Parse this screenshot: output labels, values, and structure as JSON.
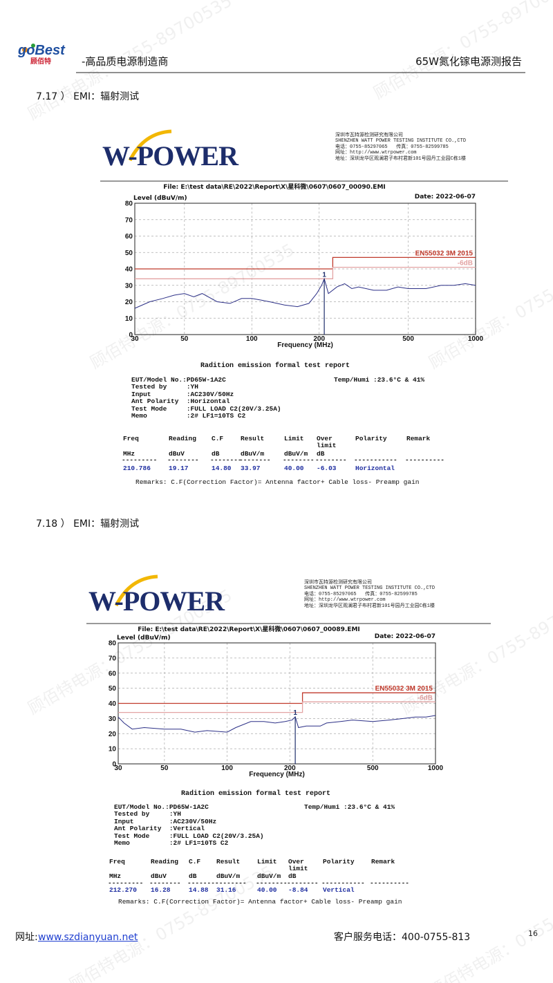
{
  "header": {
    "logo": "goBest",
    "logo_sub": "顾佰特",
    "tagline": "-高品质电源制造商",
    "doc_title": "65W氮化镓电源测报告"
  },
  "watermark": "顾佰特电源：0755-89700535",
  "sections": [
    {
      "heading": "7.17 ） EMI：辐射测试",
      "report": {
        "lab_logo": "W-POWER",
        "lab_lines": [
          "深圳市瓦特源检测研究有限公司",
          "SHENZHEN WATT POWER TESTING INSTITUTE CO.,CTD",
          "电话：0755-85297065   传真：0755-82599785",
          "网址：http://www.wtrpower.com",
          "地址：深圳龙华区观澜君子布村君新101号园丹工业园C栋1楼"
        ],
        "file": "File: E:\\test data\\RE\\2022\\Report\\X\\星科微\\0607\\0607_00090.EMI",
        "date": "Date: 2022-06-07",
        "chart": {
          "type": "line",
          "y_label": "Level (dBuV/m)",
          "x_label": "Frequency (MHz)",
          "log_x": true,
          "grid": true,
          "xlim": [
            30,
            1000
          ],
          "ylim": [
            0,
            80
          ],
          "xticks": [
            30,
            50,
            100,
            200,
            500,
            1000
          ],
          "yticks": [
            0,
            10,
            20,
            30,
            40,
            50,
            60,
            70,
            80
          ],
          "series": [
            {
              "name": "EN55032 3M 2015",
              "color": "#c0392b",
              "x": [
                30,
                230,
                230,
                1000
              ],
              "values": [
                40,
                40,
                47,
                47
              ]
            },
            {
              "name": "-6dB",
              "color": "#e3a3a3",
              "x": [
                30,
                230,
                230,
                1000
              ],
              "values": [
                34,
                34,
                41,
                41
              ]
            },
            {
              "color": "#2b2f86",
              "x": [
                30,
                35,
                40,
                45,
                50,
                55,
                60,
                70,
                80,
                90,
                100,
                110,
                120,
                140,
                160,
                180,
                195,
                205,
                210.786,
                220,
                240,
                260,
                280,
                300,
                350,
                400,
                450,
                500,
                600,
                700,
                800,
                900,
                1000
              ],
              "values": [
                16,
                20,
                22,
                24,
                25,
                23,
                25,
                20,
                19,
                22,
                22,
                21,
                20,
                18,
                17,
                19,
                25,
                30,
                33.97,
                25,
                29,
                31,
                28,
                29,
                27,
                27,
                29,
                28,
                28,
                30,
                30,
                31,
                30
              ]
            }
          ],
          "marker": {
            "label": "1",
            "x": 210.786,
            "y": 33.97
          }
        },
        "title": "Radition emission formal test report",
        "info": [
          "EUT/Model No.:PD65W-1A2C",
          "Tested by     :YH",
          "Input         :AC230V/50Hz",
          "Ant Polarity  :Horizontal",
          "Test Mode     :FULL LOAD C2(20V/3.25A)",
          "Memo          :2# LF1=10TS C2"
        ],
        "temp": "Temp/Humi :23.6°C & 41%",
        "table": {
          "headers": [
            "Freq",
            "Reading",
            "C.F",
            "Result",
            "Limit",
            "Over\nlimit",
            "Polarity",
            "Remark"
          ],
          "units": [
            "MHz",
            "dBuV",
            "dB",
            "dBuV/m",
            "dBuV/m",
            "dB",
            "",
            ""
          ],
          "dashes": [
            "---------",
            "--------",
            "--------",
            "--------",
            "--------",
            "--------",
            "-----------",
            "----------"
          ],
          "rows": [
            [
              "210.786",
              "19.17",
              "14.80",
              "33.97",
              "40.00",
              "-6.03",
              "Horizontal",
              ""
            ]
          ]
        },
        "remarks": "Remarks: C.F(Correction Factor)= Antenna factor+ Cable loss- Preamp gain"
      }
    },
    {
      "heading": "7.18 ） EMI：辐射测试",
      "report": {
        "lab_logo": "W-POWER",
        "lab_lines": [
          "深圳市瓦特源检测研究有限公司",
          "SHENZHEN WATT POWER TESTING INSTITUTE CO.,CTD",
          "电话：0755-85297065   传真：0755-82599785",
          "网址：http://www.wtrpower.com",
          "地址：深圳龙华区观澜君子布村君新101号园丹工业园C栋1楼"
        ],
        "file": "File: E:\\test data\\RE\\2022\\Report\\X\\星科微\\0607\\0607_00089.EMI",
        "date": "Date: 2022-06-07",
        "chart": {
          "type": "line",
          "y_label": "Level (dBuV/m)",
          "x_label": "Frequency (MHz)",
          "log_x": true,
          "grid": true,
          "xlim": [
            30,
            1000
          ],
          "ylim": [
            0,
            80
          ],
          "xticks": [
            30,
            50,
            100,
            200,
            500,
            1000
          ],
          "yticks": [
            0,
            10,
            20,
            30,
            40,
            50,
            60,
            70,
            80
          ],
          "series": [
            {
              "name": "EN55032 3M 2015",
              "color": "#c0392b",
              "x": [
                30,
                230,
                230,
                1000
              ],
              "values": [
                40,
                40,
                47,
                47
              ]
            },
            {
              "name": "-6dB",
              "color": "#e3a3a3",
              "x": [
                30,
                230,
                230,
                1000
              ],
              "values": [
                34,
                34,
                41,
                41
              ]
            },
            {
              "color": "#2b2f86",
              "x": [
                30,
                32,
                35,
                40,
                50,
                60,
                70,
                80,
                100,
                110,
                130,
                150,
                170,
                190,
                205,
                212.27,
                220,
                240,
                280,
                300,
                350,
                400,
                500,
                600,
                700,
                800,
                900,
                1000
              ],
              "values": [
                31,
                27,
                23,
                24,
                23,
                23,
                21,
                22,
                21,
                24,
                28,
                28,
                27,
                28,
                29,
                31.16,
                24,
                25,
                25,
                27,
                28,
                29,
                28,
                29,
                30,
                31,
                31,
                32
              ]
            }
          ],
          "marker": {
            "label": "1",
            "x": 212.27,
            "y": 31.16
          }
        },
        "title": "Radition emission formal test report",
        "info": [
          "EUT/Model No.:PD65W-1A2C",
          "Tested by     :YH",
          "Input         :AC230V/50Hz",
          "Ant Polarity  :Vertical",
          "Test Mode     :FULL LOAD C2(20V/3.25A)",
          "Memo          :2# LF1=10TS C2"
        ],
        "temp": "Temp/Humi :23.6°C & 41%",
        "table": {
          "headers": [
            "Freq",
            "Reading",
            "C.F",
            "Result",
            "Limit",
            "Over\nlimit",
            "Polarity",
            "Remark"
          ],
          "units": [
            "MHz",
            "dBuV",
            "dB",
            "dBuV/m",
            "dBuV/m",
            "dB",
            "",
            ""
          ],
          "dashes": [
            "---------",
            "--------",
            "--------",
            "--------",
            "--------",
            "--------",
            "-----------",
            "----------"
          ],
          "rows": [
            [
              "212.270",
              "16.28",
              "14.88",
              "31.16",
              "40.00",
              "-8.84",
              "Vertical",
              ""
            ]
          ]
        },
        "remarks": "Remarks: C.F(Correction Factor)= Antenna factor+ Cable loss- Preamp gain"
      }
    }
  ],
  "footer": {
    "site_label": "网址:",
    "site_url": "www.szdianyuan.net",
    "phone": "客户服务电话：400-0755-813",
    "page": "16"
  }
}
